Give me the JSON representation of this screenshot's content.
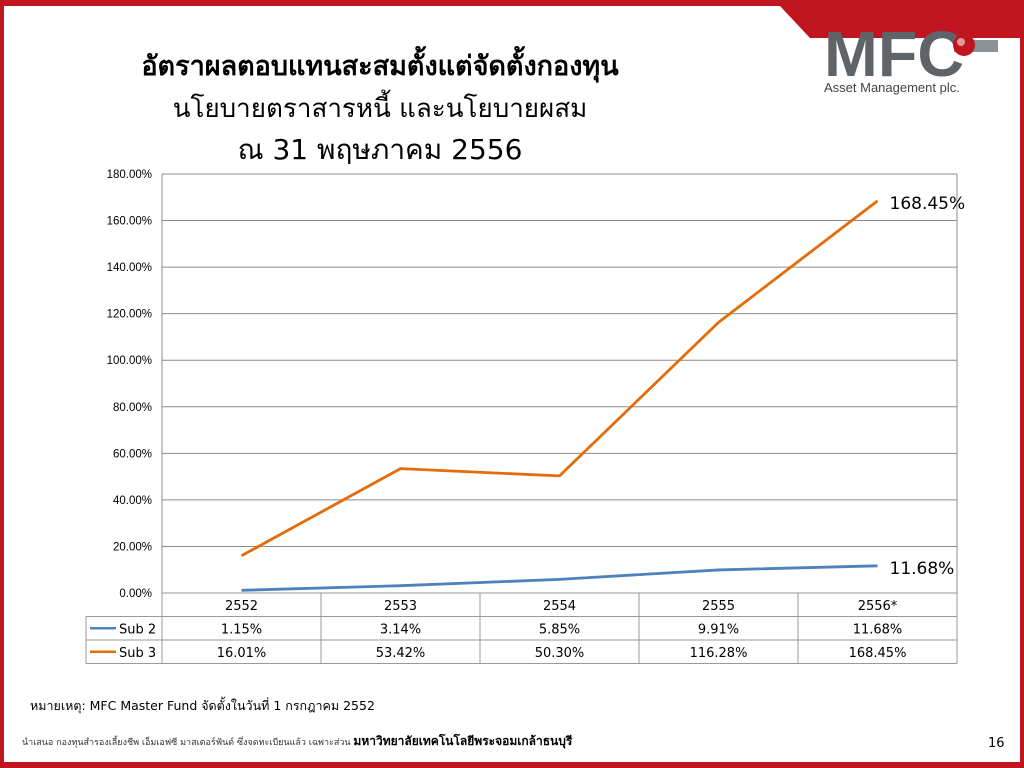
{
  "header": {
    "title": "อัตราผลตอบแทนสะสมตั้งแต่จัดตั้งกองทุน",
    "subtitle": "นโยบายตราสารหนี้ และนโยบายผสม",
    "date": "ณ 31 พฤษภาคม 2556",
    "logo_text": "MFC",
    "logo_sub": "Asset Management plc."
  },
  "chart_data": {
    "type": "line",
    "x": [
      "2552",
      "2553",
      "2554",
      "2555",
      "2556*"
    ],
    "series": [
      {
        "name": "Sub 2",
        "values": [
          1.15,
          3.14,
          5.85,
          9.91,
          11.68
        ],
        "labels": [
          "1.15%",
          "3.14%",
          "5.85%",
          "9.91%",
          "11.68%"
        ],
        "end_label": "11.68%",
        "color": "#4f81bd"
      },
      {
        "name": "Sub 3",
        "values": [
          16.01,
          53.42,
          50.3,
          116.28,
          168.45
        ],
        "labels": [
          "16.01%",
          "53.42%",
          "50.30%",
          "116.28%",
          "168.45%"
        ],
        "end_label": "168.45%",
        "color": "#e46c0a"
      }
    ],
    "ylim": [
      0,
      180
    ],
    "yticks": [
      "0.00%",
      "20.00%",
      "40.00%",
      "60.00%",
      "80.00%",
      "100.00%",
      "120.00%",
      "140.00%",
      "160.00%",
      "180.00%"
    ],
    "grid": true,
    "legend": "data-table"
  },
  "note": "หมายเหตุ: MFC Master Fund จัดตั้งในวันที่ 1 กรกฎาคม 2552",
  "footer": {
    "text": "นำเสนอ กองทุนสำรองเลี้ยงชีพ เอ็มเอฟซี มาสเตอร์ฟันด์ ซึ่งจดทะเบียนแล้ว เฉพาะส่วน",
    "institution": "มหาวิทยาลัยเทคโนโลยีพระจอมเกล้าธนบุรี"
  },
  "page_number": "16",
  "colors": {
    "accent_red": "#c0141e",
    "grid": "#8c8c8c",
    "logo_gray": "#5f6468"
  }
}
